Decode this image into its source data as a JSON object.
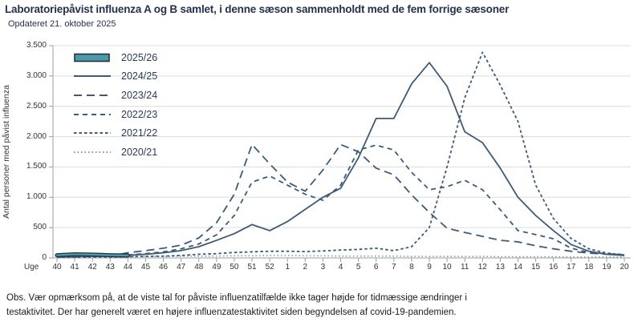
{
  "header": {
    "title": "Laboratoriepåvist influenza A og B samlet, i denne sæson sammenholdt med de fem forrige sæsoner",
    "updated": "Opdateret 21. oktober 2025"
  },
  "chart_data": {
    "type": "line",
    "title": "Laboratoriepåvist influenza A og B samlet, i denne sæson sammenholdt med de fem forrige sæsoner",
    "xlabel": "Uge",
    "ylabel": "Antal personer med påvist influenza",
    "ylim": [
      0,
      3500
    ],
    "grid": true,
    "legend_position": "top-left-inside",
    "ytick_values": [
      0,
      500,
      1000,
      1500,
      2000,
      2500,
      3000,
      3500
    ],
    "ytick_labels": [
      "0",
      "500",
      "1.000",
      "1.500",
      "2.000",
      "2.500",
      "3.000",
      "3.500"
    ],
    "categories": [
      "40",
      "41",
      "42",
      "43",
      "44",
      "45",
      "46",
      "47",
      "48",
      "49",
      "50",
      "51",
      "52",
      "1",
      "2",
      "3",
      "4",
      "5",
      "6",
      "7",
      "8",
      "9",
      "10",
      "11",
      "12",
      "13",
      "14",
      "15",
      "16",
      "17",
      "18",
      "19",
      "20"
    ],
    "series": [
      {
        "name": "2025/26",
        "style": "area-swatch",
        "color": "#4f98a8",
        "border": "#1c3442",
        "values": [
          45,
          60,
          55,
          45,
          40,
          null,
          null,
          null,
          null,
          null,
          null,
          null,
          null,
          null,
          null,
          null,
          null,
          null,
          null,
          null,
          null,
          null,
          null,
          null,
          null,
          null,
          null,
          null,
          null,
          null,
          null,
          null,
          null
        ]
      },
      {
        "name": "2024/25",
        "style": "solid",
        "color": "#3d5a76",
        "values": [
          20,
          25,
          30,
          35,
          45,
          60,
          85,
          120,
          185,
          290,
          400,
          550,
          450,
          600,
          800,
          1000,
          1150,
          1650,
          2300,
          2300,
          2870,
          3220,
          2830,
          2080,
          1900,
          1480,
          1000,
          700,
          450,
          220,
          110,
          60,
          40
        ]
      },
      {
        "name": "2023/24",
        "style": "long-dash",
        "color": "#3d5a76",
        "values": [
          15,
          20,
          25,
          30,
          85,
          120,
          160,
          210,
          330,
          580,
          1050,
          1870,
          1550,
          1250,
          1100,
          1450,
          1870,
          1750,
          1480,
          1370,
          1040,
          750,
          490,
          420,
          355,
          290,
          265,
          200,
          150,
          110,
          80,
          60,
          50
        ]
      },
      {
        "name": "2022/23",
        "style": "dash",
        "color": "#3d5a76",
        "values": [
          15,
          20,
          25,
          30,
          50,
          70,
          100,
          150,
          230,
          380,
          700,
          1250,
          1350,
          1200,
          1050,
          950,
          1200,
          1780,
          1860,
          1780,
          1410,
          1125,
          1175,
          1280,
          1125,
          795,
          450,
          385,
          315,
          160,
          90,
          70,
          55
        ]
      },
      {
        "name": "2021/22",
        "style": "short-dash",
        "color": "#3d5a76",
        "values": [
          10,
          10,
          15,
          15,
          20,
          25,
          30,
          40,
          60,
          70,
          90,
          100,
          110,
          110,
          105,
          115,
          130,
          140,
          160,
          120,
          185,
          500,
          1500,
          2640,
          3390,
          2850,
          2250,
          1200,
          650,
          320,
          150,
          80,
          50
        ]
      },
      {
        "name": "2020/21",
        "style": "dot",
        "color": "#7e96ad",
        "values": [
          20,
          20,
          20,
          20,
          25,
          25,
          25,
          30,
          30,
          30,
          35,
          35,
          40,
          40,
          35,
          35,
          30,
          30,
          30,
          30,
          25,
          25,
          25,
          25,
          25,
          20,
          20,
          20,
          20,
          15,
          15,
          15,
          15
        ]
      }
    ]
  },
  "footer": {
    "line1": "Obs. Vær opmærksom på, at de viste tal for påviste influenzatilfælde ikke tager højde for tidmæssige ændringer i",
    "line2": "testaktivitet. Der har generelt været en højere influenzatestaktivitet siden begyndelsen af covid-19-pandemien."
  }
}
